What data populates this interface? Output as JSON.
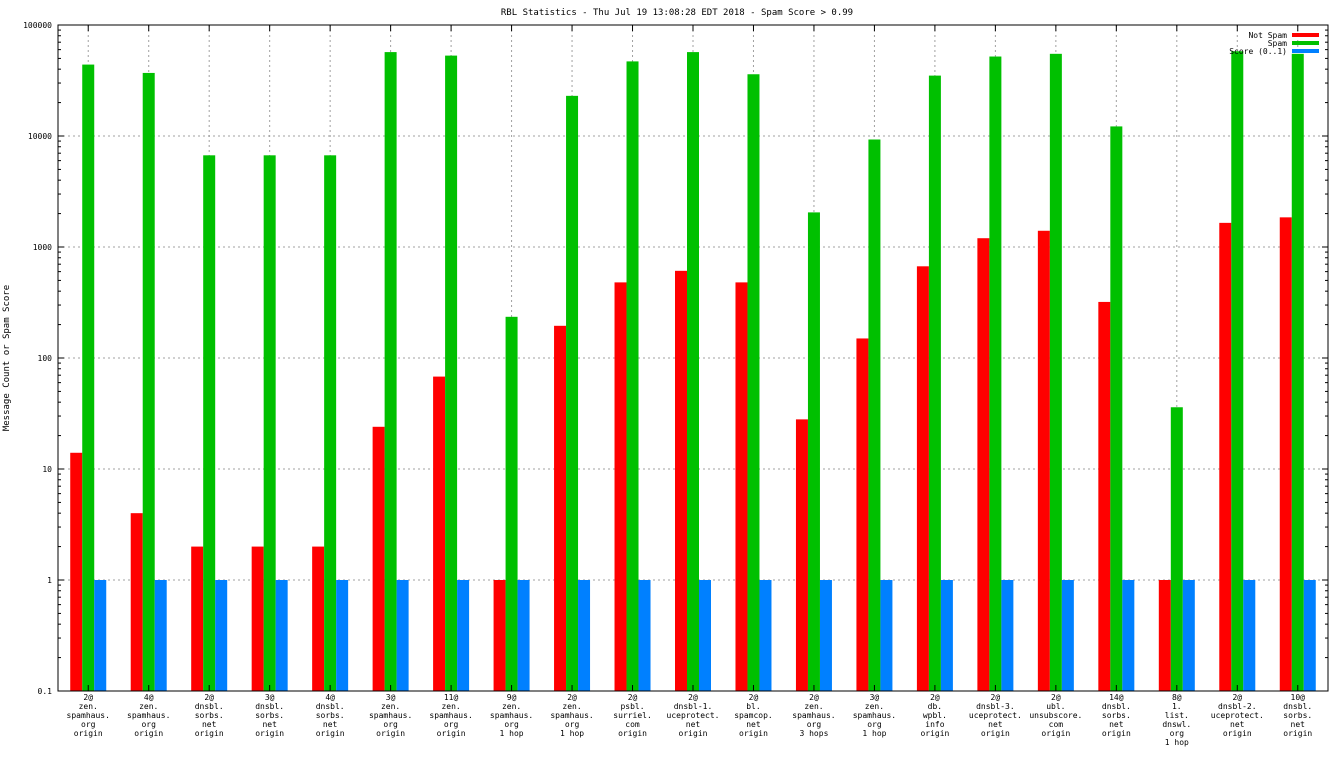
{
  "chart_data": {
    "type": "bar",
    "title": "RBL Statistics - Thu Jul 19 13:08:28 EDT 2018 - Spam Score > 0.99",
    "xlabel": "",
    "ylabel": "Message Count or Spam Score",
    "yscale": "log",
    "ylim": [
      0.1,
      100000
    ],
    "yticks": [
      0.1,
      1,
      10,
      100,
      1000,
      10000,
      100000
    ],
    "ytick_labels": [
      "0.1",
      "1",
      "10",
      "100",
      "1000",
      "10000",
      "100000"
    ],
    "grid": true,
    "legend_position": "top-right",
    "categories": [
      [
        "2@",
        "zen.",
        "spamhaus.",
        "org",
        "origin"
      ],
      [
        "4@",
        "zen.",
        "spamhaus.",
        "org",
        "origin"
      ],
      [
        "2@",
        "dnsbl.",
        "sorbs.",
        "net",
        "origin"
      ],
      [
        "3@",
        "dnsbl.",
        "sorbs.",
        "net",
        "origin"
      ],
      [
        "4@",
        "dnsbl.",
        "sorbs.",
        "net",
        "origin"
      ],
      [
        "3@",
        "zen.",
        "spamhaus.",
        "org",
        "origin"
      ],
      [
        "11@",
        "zen.",
        "spamhaus.",
        "org",
        "origin"
      ],
      [
        "9@",
        "zen.",
        "spamhaus.",
        "org",
        "1 hop"
      ],
      [
        "2@",
        "zen.",
        "spamhaus.",
        "org",
        "1 hop"
      ],
      [
        "2@",
        "psbl.",
        "surriel.",
        "com",
        "origin"
      ],
      [
        "2@",
        "dnsbl-1.",
        "uceprotect.",
        "net",
        "origin"
      ],
      [
        "2@",
        "bl.",
        "spamcop.",
        "net",
        "origin"
      ],
      [
        "2@",
        "zen.",
        "spamhaus.",
        "org",
        "3 hops"
      ],
      [
        "3@",
        "zen.",
        "spamhaus.",
        "org",
        "1 hop"
      ],
      [
        "2@",
        "db.",
        "wpbl.",
        "info",
        "origin"
      ],
      [
        "2@",
        "dnsbl-3.",
        "uceprotect.",
        "net",
        "origin"
      ],
      [
        "2@",
        "ubl.",
        "unsubscore.",
        "com",
        "origin"
      ],
      [
        "14@",
        "dnsbl.",
        "sorbs.",
        "net",
        "origin"
      ],
      [
        "8@",
        "1.",
        "list.",
        "dnswl.",
        "org",
        "1 hop"
      ],
      [
        "2@",
        "dnsbl-2.",
        "uceprotect.",
        "net",
        "origin"
      ],
      [
        "10@",
        "dnsbl.",
        "sorbs.",
        "net",
        "origin"
      ]
    ],
    "series": [
      {
        "name": "Not Spam",
        "color": "#ff0000",
        "values": [
          14,
          4,
          2,
          2,
          2,
          24,
          68,
          1,
          195,
          480,
          610,
          480,
          28,
          150,
          670,
          1200,
          1400,
          320,
          1,
          1650,
          1850
        ]
      },
      {
        "name": "Spam",
        "color": "#00c000",
        "values": [
          44000,
          37000,
          6700,
          6700,
          6700,
          57000,
          53000,
          235,
          23000,
          47000,
          57000,
          36000,
          2050,
          9300,
          35000,
          52000,
          55000,
          12200,
          36,
          58000,
          55000
        ]
      },
      {
        "name": "Score (0..1)",
        "color": "#0080ff",
        "values": [
          1,
          1,
          1,
          1,
          1,
          1,
          1,
          1,
          1,
          1,
          1,
          1,
          1,
          1,
          1,
          1,
          1,
          1,
          1,
          1,
          1
        ]
      }
    ]
  }
}
